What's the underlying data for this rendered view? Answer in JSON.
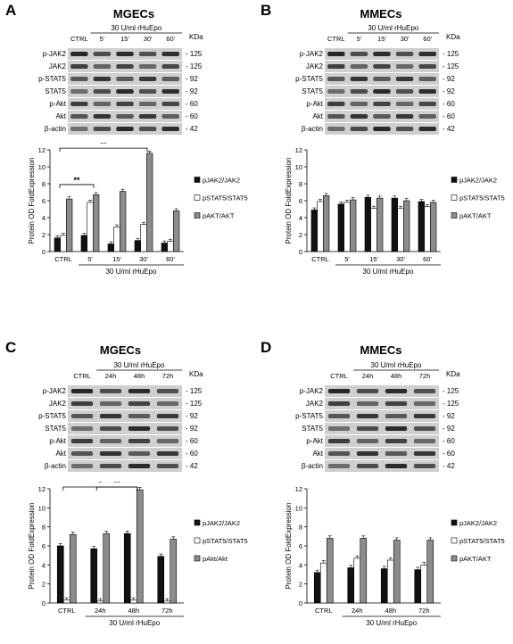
{
  "panels": [
    {
      "letter": "A",
      "title": "MGECs",
      "blot": {
        "treatment": "30 U/ml rHuEpo",
        "unit": "KDa",
        "lanes": [
          "CTRL",
          "5'",
          "15'",
          "30'",
          "60'"
        ],
        "rows": [
          {
            "label": "p-JAK2",
            "kda": "125"
          },
          {
            "label": "JAK2",
            "kda": "125"
          },
          {
            "label": "p-STAT5",
            "kda": "92"
          },
          {
            "label": "STAT5",
            "kda": "92"
          },
          {
            "label": "p-Akt",
            "kda": "60"
          },
          {
            "label": "Akt",
            "kda": "60"
          },
          {
            "label": "β-actin",
            "kda": "42"
          }
        ]
      },
      "chart_data": {
        "type": "bar",
        "categories": [
          "CTRL",
          "5'",
          "15'",
          "30'",
          "60'"
        ],
        "xlabel": "30 U/ml rHuEpo",
        "ylabel": "Protein OD FoldExpression",
        "ylim": [
          0,
          12
        ],
        "yticks": [
          "0",
          "2",
          "4",
          "6",
          "8",
          "10",
          "12"
        ],
        "series": [
          {
            "name": "pJAK2/JAK2",
            "values": [
              1.6,
              1.9,
              0.9,
              1.3,
              1.0
            ],
            "color": "#111111"
          },
          {
            "name": "pSTAT5/STAT5",
            "values": [
              1.9,
              5.8,
              2.9,
              3.2,
              1.2
            ],
            "color": "#ffffff"
          },
          {
            "name": "pAKT/AKT",
            "values": [
              6.2,
              6.7,
              7.1,
              11.6,
              4.8
            ],
            "color": "#8c8c8c"
          }
        ],
        "significance": [
          {
            "label": "**",
            "from": "CTRL",
            "to": "30'"
          },
          {
            "label": "**",
            "from": "CTRL",
            "to": "5'"
          }
        ]
      }
    },
    {
      "letter": "B",
      "title": "MMECs",
      "blot": {
        "treatment": "30 U/ml rHuEpo",
        "unit": "KDa",
        "lanes": [
          "CTRL",
          "5'",
          "15'",
          "30'",
          "60'"
        ],
        "rows": [
          {
            "label": "p-JAK2",
            "kda": "125"
          },
          {
            "label": "JAK2",
            "kda": "125"
          },
          {
            "label": "p-STAT5",
            "kda": "92"
          },
          {
            "label": "STAT5",
            "kda": "92"
          },
          {
            "label": "p-Akt",
            "kda": "60"
          },
          {
            "label": "Akt",
            "kda": "60"
          },
          {
            "label": "β-actin",
            "kda": "42"
          }
        ]
      },
      "chart_data": {
        "type": "bar",
        "categories": [
          "CTRL",
          "5'",
          "15'",
          "30'",
          "60'"
        ],
        "xlabel": "30 U/ml rHuEpo",
        "ylabel": "Protein OD FoldExpression",
        "ylim": [
          0,
          12
        ],
        "yticks": [
          "0",
          "2",
          "4",
          "6",
          "8",
          "10",
          "12"
        ],
        "series": [
          {
            "name": "pJAK2/JAK2",
            "values": [
              4.9,
              5.6,
              6.4,
              6.3,
              5.9
            ],
            "color": "#111111"
          },
          {
            "name": "pSTAT5/STAT5",
            "values": [
              5.9,
              5.8,
              5.1,
              5.1,
              5.3
            ],
            "color": "#ffffff"
          },
          {
            "name": "pAKT/AKT",
            "values": [
              6.6,
              6.1,
              6.3,
              6.0,
              5.8
            ],
            "color": "#8c8c8c"
          }
        ],
        "significance": []
      }
    },
    {
      "letter": "C",
      "title": "MGECs",
      "blot": {
        "treatment": "30 U/ml rHuEpo",
        "unit": "KDa",
        "lanes": [
          "CTRL",
          "24h",
          "48h",
          "72h"
        ],
        "rows": [
          {
            "label": "p-JAK2",
            "kda": "125"
          },
          {
            "label": "JAK2",
            "kda": "125"
          },
          {
            "label": "p-STAT5",
            "kda": "92"
          },
          {
            "label": "STAT5",
            "kda": "92"
          },
          {
            "label": "p-Akt",
            "kda": "60"
          },
          {
            "label": "Akt",
            "kda": "60"
          },
          {
            "label": "β-actin",
            "kda": "42"
          }
        ]
      },
      "chart_data": {
        "type": "bar",
        "categories": [
          "CTRL",
          "24h",
          "48h",
          "72h"
        ],
        "xlabel": "30 U/ml rHuEpo",
        "ylabel": "Protein OD FoldExpression",
        "ylim": [
          0,
          12
        ],
        "yticks": [
          "0",
          "2",
          "4",
          "6",
          "8",
          "10",
          "12"
        ],
        "series": [
          {
            "name": "pJAK2/JAK2",
            "values": [
              6.0,
              5.7,
              7.3,
              4.9
            ],
            "color": "#111111"
          },
          {
            "name": "pSTAT5/STAT5",
            "values": [
              0.3,
              0.2,
              0.3,
              0.2
            ],
            "color": "#ffffff"
          },
          {
            "name": "pAkt/Akt",
            "values": [
              7.2,
              7.3,
              11.9,
              6.7
            ],
            "color": "#8c8c8c"
          }
        ],
        "significance": [
          {
            "label": "**",
            "from": "24h",
            "to": "48h"
          },
          {
            "label": "*",
            "from": "CTRL",
            "to": "48h"
          }
        ]
      }
    },
    {
      "letter": "D",
      "title": "MMECs",
      "blot": {
        "treatment": "30 U/ml rHuEpo",
        "unit": "KDa",
        "lanes": [
          "CTRL",
          "24h",
          "48h",
          "72h"
        ],
        "rows": [
          {
            "label": "p-JAK2",
            "kda": "125"
          },
          {
            "label": "JAK2",
            "kda": "125"
          },
          {
            "label": "p-STAT5",
            "kda": "92"
          },
          {
            "label": "STAT5",
            "kda": "92"
          },
          {
            "label": "p-Akt",
            "kda": "60"
          },
          {
            "label": "Akt",
            "kda": "60"
          },
          {
            "label": "β-actin",
            "kda": "42"
          }
        ]
      },
      "chart_data": {
        "type": "bar",
        "categories": [
          "CTRL",
          "24h",
          "48h",
          "72h"
        ],
        "xlabel": "30 U/ml rHuEpo",
        "ylabel": "Protein OD FoldExpression",
        "ylim": [
          0,
          12
        ],
        "yticks": [
          "0",
          "2",
          "4",
          "6",
          "8",
          "10",
          "12"
        ],
        "series": [
          {
            "name": "pJAK2/JAK2",
            "values": [
              3.2,
              3.7,
              3.6,
              3.5
            ],
            "color": "#111111"
          },
          {
            "name": "pSTAT5/STAT5",
            "values": [
              4.2,
              4.7,
              4.5,
              4.0
            ],
            "color": "#ffffff"
          },
          {
            "name": "pAKT/AKT",
            "values": [
              6.8,
              6.8,
              6.6,
              6.6
            ],
            "color": "#8c8c8c"
          }
        ],
        "significance": []
      }
    }
  ]
}
